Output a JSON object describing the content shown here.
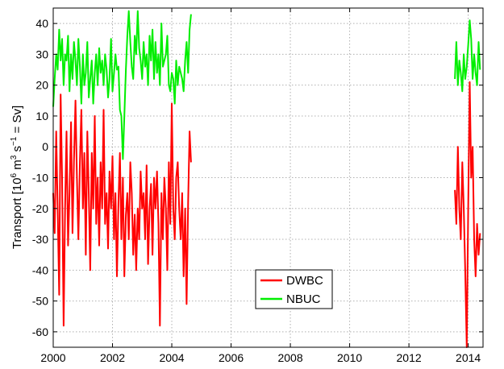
{
  "chart_data": {
    "type": "line",
    "title": "",
    "xlabel": "",
    "ylabel": "Transport [10^6 m^3 s^-1 = Sv]",
    "ylabel_parts": {
      "prefix": "Transport [10",
      "exp1": "6",
      "mid1": " m",
      "exp2": "3",
      "mid2": " s",
      "exp3": "−1",
      "suffix": " = Sv]"
    },
    "xlim": [
      2000,
      2014.5
    ],
    "ylim": [
      -65,
      45
    ],
    "xticks": [
      2000,
      2002,
      2004,
      2006,
      2008,
      2010,
      2012,
      2014
    ],
    "xtick_labels": [
      "2000",
      "2002",
      "2004",
      "2006",
      "2008",
      "2010",
      "2012",
      "2014"
    ],
    "yticks": [
      -60,
      -50,
      -40,
      -30,
      -20,
      -10,
      0,
      10,
      20,
      30,
      40
    ],
    "ytick_labels": [
      "-60",
      "-50",
      "-40",
      "-30",
      "-20",
      "-10",
      "0",
      "10",
      "20",
      "30",
      "40"
    ],
    "grid": true,
    "legend_position": "bottom-center",
    "series": [
      {
        "name": "DWBC",
        "color": "#ff0000",
        "segments": [
          {
            "x": [
              2000.0,
              2000.05,
              2000.1,
              2000.15,
              2000.2,
              2000.25,
              2000.3,
              2000.35,
              2000.4,
              2000.45,
              2000.5,
              2000.55,
              2000.6,
              2000.65,
              2000.7,
              2000.75,
              2000.8,
              2000.85,
              2000.9,
              2000.95,
              2001.0,
              2001.05,
              2001.1,
              2001.15,
              2001.2,
              2001.25,
              2001.3,
              2001.35,
              2001.4,
              2001.45,
              2001.5,
              2001.55,
              2001.6,
              2001.65,
              2001.7,
              2001.75,
              2001.8,
              2001.85,
              2001.9,
              2001.95,
              2002.0,
              2002.05,
              2002.1,
              2002.15,
              2002.2,
              2002.25,
              2002.3,
              2002.35,
              2002.4,
              2002.45,
              2002.5,
              2002.55,
              2002.6,
              2002.65,
              2002.7,
              2002.75,
              2002.8,
              2002.85,
              2002.9,
              2002.95,
              2003.0,
              2003.05,
              2003.1,
              2003.15,
              2003.2,
              2003.25,
              2003.3,
              2003.35,
              2003.4,
              2003.45,
              2003.5,
              2003.55,
              2003.6,
              2003.65,
              2003.7,
              2003.75,
              2003.8,
              2003.85,
              2003.9,
              2003.95,
              2004.0,
              2004.05,
              2004.1,
              2004.15,
              2004.2,
              2004.25,
              2004.3,
              2004.35,
              2004.4,
              2004.45,
              2004.5,
              2004.55,
              2004.6,
              2004.65
            ],
            "y": [
              -15,
              -28,
              5,
              -20,
              -48,
              17,
              -10,
              -58,
              -20,
              5,
              -32,
              -15,
              8,
              -28,
              -5,
              15,
              -10,
              -30,
              -5,
              12,
              -20,
              -2,
              -35,
              5,
              -15,
              -40,
              -2,
              -20,
              10,
              -25,
              -10,
              -32,
              -5,
              -20,
              12,
              -25,
              -15,
              -33,
              -8,
              -20,
              -3,
              -30,
              -15,
              -42,
              -18,
              -2,
              -30,
              -10,
              -42,
              -22,
              -15,
              -30,
              -5,
              -15,
              -35,
              -22,
              -40,
              -20,
              -30,
              -8,
              -20,
              -15,
              -30,
              -6,
              -38,
              -20,
              -12,
              -35,
              -10,
              -20,
              -8,
              -25,
              -58,
              -15,
              -30,
              -10,
              -20,
              -40,
              -5,
              -25,
              14,
              -20,
              -30,
              -10,
              -5,
              -20,
              -30,
              -15,
              -42,
              -20,
              -51,
              -18,
              5,
              -5
            ]
          },
          {
            "x": [
              2013.55,
              2013.6,
              2013.65,
              2013.7,
              2013.75,
              2013.8,
              2013.85,
              2013.9,
              2013.95,
              2014.0,
              2014.05,
              2014.1,
              2014.15,
              2014.2,
              2014.25,
              2014.3,
              2014.35,
              2014.4
            ],
            "y": [
              -14,
              -25,
              0,
              -20,
              -30,
              -5,
              -20,
              -40,
              -65,
              -20,
              21,
              -10,
              0,
              -30,
              -42,
              -25,
              -35,
              -28
            ]
          }
        ]
      },
      {
        "name": "NBUC",
        "color": "#00ee00",
        "segments": [
          {
            "x": [
              2000.0,
              2000.05,
              2000.1,
              2000.15,
              2000.2,
              2000.25,
              2000.3,
              2000.35,
              2000.4,
              2000.45,
              2000.5,
              2000.55,
              2000.6,
              2000.65,
              2000.7,
              2000.75,
              2000.8,
              2000.85,
              2000.9,
              2000.95,
              2001.0,
              2001.05,
              2001.1,
              2001.15,
              2001.2,
              2001.25,
              2001.3,
              2001.35,
              2001.4,
              2001.45,
              2001.5,
              2001.55,
              2001.6,
              2001.65,
              2001.7,
              2001.75,
              2001.8,
              2001.85,
              2001.9,
              2001.95,
              2002.0,
              2002.05,
              2002.1,
              2002.15,
              2002.2,
              2002.25,
              2002.3,
              2002.35,
              2002.4,
              2002.45,
              2002.5,
              2002.55,
              2002.6,
              2002.65,
              2002.7,
              2002.75,
              2002.8,
              2002.85,
              2002.9,
              2002.95,
              2003.0,
              2003.05,
              2003.1,
              2003.15,
              2003.2,
              2003.25,
              2003.3,
              2003.35,
              2003.4,
              2003.45,
              2003.5,
              2003.55,
              2003.6,
              2003.65,
              2003.7,
              2003.75,
              2003.8,
              2003.85,
              2003.9,
              2003.95,
              2004.0,
              2004.05,
              2004.1,
              2004.15,
              2004.2,
              2004.25,
              2004.3,
              2004.35,
              2004.4,
              2004.45,
              2004.5,
              2004.55,
              2004.6,
              2004.65
            ],
            "y": [
              13,
              22,
              30,
              25,
              38,
              28,
              35,
              20,
              30,
              28,
              36,
              18,
              30,
              22,
              34,
              28,
              20,
              35,
              26,
              14,
              30,
              20,
              24,
              34,
              16,
              22,
              28,
              14,
              24,
              30,
              20,
              32,
              24,
              28,
              20,
              30,
              25,
              16,
              22,
              35,
              18,
              24,
              30,
              25,
              26,
              12,
              10,
              -4,
              10,
              25,
              36,
              44,
              34,
              26,
              22,
              36,
              30,
              44,
              32,
              28,
              22,
              34,
              26,
              30,
              20,
              36,
              28,
              38,
              22,
              34,
              24,
              30,
              20,
              40,
              26,
              28,
              30,
              36,
              20,
              18,
              24,
              22,
              14,
              28,
              20,
              26,
              24,
              22,
              18,
              28,
              34,
              24,
              38,
              43
            ]
          },
          {
            "x": [
              2013.55,
              2013.6,
              2013.65,
              2013.7,
              2013.75,
              2013.8,
              2013.85,
              2013.9,
              2013.95,
              2014.0,
              2014.05,
              2014.1,
              2014.15,
              2014.2,
              2014.25,
              2014.3,
              2014.35,
              2014.4
            ],
            "y": [
              22,
              34,
              20,
              28,
              24,
              18,
              30,
              22,
              26,
              33,
              41,
              35,
              22,
              30,
              24,
              20,
              34,
              25
            ]
          }
        ]
      }
    ]
  }
}
